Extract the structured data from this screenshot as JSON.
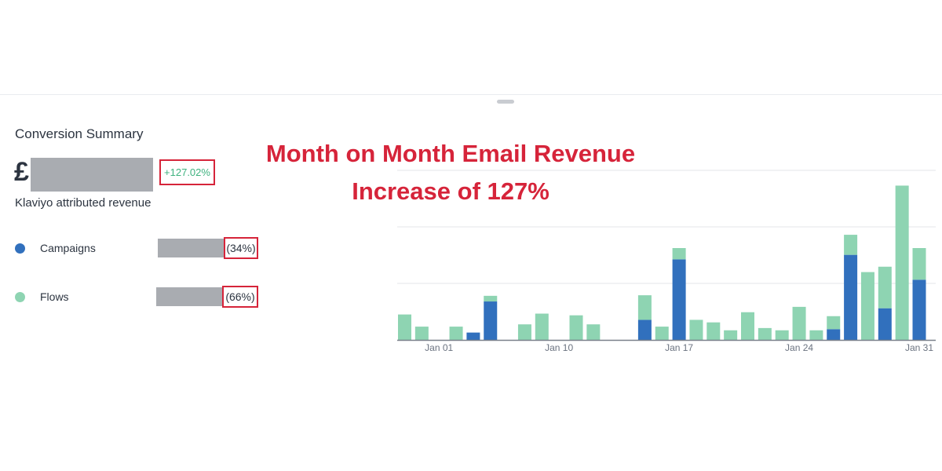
{
  "summary": {
    "title": "Conversion Summary",
    "currency": "£",
    "change": "+127.02%",
    "revenue_label": "Klaviyo attributed revenue"
  },
  "legend": [
    {
      "name": "Campaigns",
      "share": "(34%)",
      "color": "#3170bd"
    },
    {
      "name": "Flows",
      "share": "(66%)",
      "color": "#8ed4b2"
    }
  ],
  "annotation": {
    "line1": "Month on Month Email Revenue",
    "line2": "Increase of 127%"
  },
  "colors": {
    "accent_red": "#d6243a",
    "positive_green": "#3fb27f",
    "campaigns": "#3170bd",
    "flows": "#8ed4b2",
    "redaction": "#a9acb1"
  },
  "chart_data": {
    "type": "bar",
    "stacked": true,
    "grid": true,
    "ylim": [
      0,
      55
    ],
    "x_tick_labels": [
      "Jan 01",
      "Jan 10",
      "Jan 17",
      "Jan 24",
      "Jan 31"
    ],
    "x_tick_indices": [
      2,
      9,
      16,
      23,
      30
    ],
    "series": [
      {
        "name": "Campaigns",
        "values": [
          0,
          0,
          0,
          0,
          2.6,
          13.6,
          0,
          0,
          0,
          0,
          0,
          0,
          0,
          0,
          7.1,
          0,
          28.5,
          0,
          0,
          0,
          0,
          0,
          0,
          0,
          0,
          3.8,
          30.1,
          0,
          11.2,
          0,
          21.3
        ]
      },
      {
        "name": "Flows",
        "values": [
          9,
          4.7,
          0,
          4.7,
          0,
          2,
          0,
          5.5,
          9.3,
          0,
          8.7,
          5.5,
          0,
          0,
          8.7,
          4.7,
          4,
          7.1,
          6.2,
          3.4,
          9.8,
          4.2,
          3.4,
          11.7,
          3.4,
          4.6,
          7.1,
          24,
          14.7,
          54.6,
          11.2
        ]
      }
    ]
  }
}
